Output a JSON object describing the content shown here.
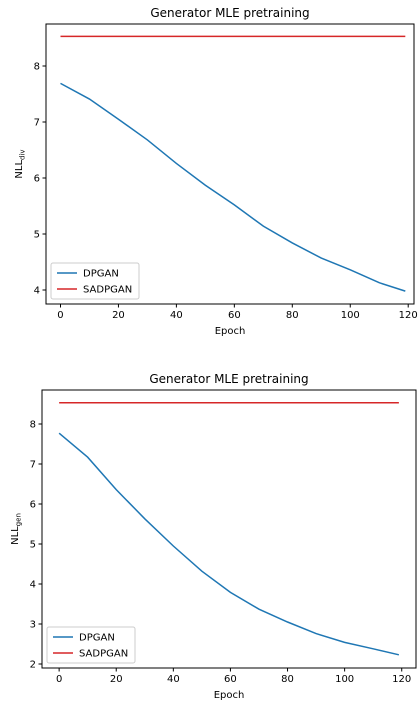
{
  "chart_data": [
    {
      "type": "line",
      "title": "Generator MLE pretraining",
      "xlabel": "Epoch",
      "ylabel_main": "NLL",
      "ylabel_sub": "div",
      "xlim": [
        -5,
        122
      ],
      "ylim": [
        3.75,
        8.75
      ],
      "xticks": [
        0,
        20,
        40,
        60,
        80,
        100,
        120
      ],
      "yticks": [
        4,
        5,
        6,
        7,
        8
      ],
      "xtick_labels": [
        "0",
        "20",
        "40",
        "60",
        "80",
        "100",
        "120"
      ],
      "ytick_labels": [
        "4",
        "5",
        "6",
        "7",
        "8"
      ],
      "legend": "lower-left",
      "grid": false,
      "series": [
        {
          "name": "DPGAN",
          "color": "#1f77b4",
          "x": [
            0,
            10,
            20,
            30,
            40,
            50,
            60,
            70,
            80,
            90,
            100,
            110,
            119
          ],
          "y": [
            7.69,
            7.41,
            7.05,
            6.68,
            6.26,
            5.87,
            5.52,
            5.14,
            4.84,
            4.57,
            4.36,
            4.13,
            3.98
          ]
        },
        {
          "name": "SADPGAN",
          "color": "#d62728",
          "x": [
            0,
            119
          ],
          "y": [
            8.53,
            8.53
          ]
        }
      ]
    },
    {
      "type": "line",
      "title": "Generator MLE pretraining",
      "xlabel": "Epoch",
      "ylabel_main": "NLL",
      "ylabel_sub": "gen",
      "xlim": [
        -6,
        125
      ],
      "ylim": [
        1.9,
        8.85
      ],
      "xticks": [
        0,
        20,
        40,
        60,
        80,
        100,
        120
      ],
      "yticks": [
        2,
        3,
        4,
        5,
        6,
        7,
        8
      ],
      "xtick_labels": [
        "0",
        "20",
        "40",
        "60",
        "80",
        "100",
        "120"
      ],
      "ytick_labels": [
        "2",
        "3",
        "4",
        "5",
        "6",
        "7",
        "8"
      ],
      "legend": "lower-left",
      "grid": false,
      "series": [
        {
          "name": "DPGAN",
          "color": "#1f77b4",
          "x": [
            0,
            10,
            20,
            30,
            40,
            50,
            60,
            70,
            80,
            90,
            100,
            110,
            119
          ],
          "y": [
            7.77,
            7.17,
            6.36,
            5.63,
            4.95,
            4.32,
            3.79,
            3.37,
            3.05,
            2.76,
            2.54,
            2.38,
            2.23
          ]
        },
        {
          "name": "SADPGAN",
          "color": "#d62728",
          "x": [
            0,
            119
          ],
          "y": [
            8.53,
            8.53
          ]
        }
      ]
    }
  ]
}
